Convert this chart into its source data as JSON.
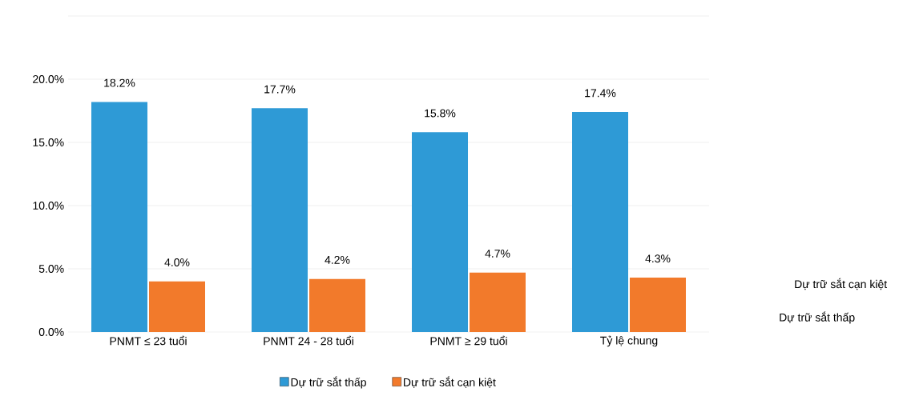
{
  "chart_data": {
    "type": "bar",
    "categories": [
      "PNMT ≤ 23 tuổi",
      "PNMT 24 - 28 tuổi",
      "PNMT ≥ 29 tuổi",
      "Tỷ lệ chung"
    ],
    "series": [
      {
        "name": "Dự trữ sắt thấp",
        "color": "#2e9ad6",
        "values": [
          18.2,
          17.7,
          15.8,
          17.4
        ],
        "value_labels": [
          "18.2%",
          "17.7%",
          "15.8%",
          "17.4%"
        ]
      },
      {
        "name": "Dự trữ sắt cạn kiệt",
        "color": "#f27a2b",
        "values": [
          4.0,
          4.2,
          4.7,
          4.3
        ],
        "value_labels": [
          "4.0%",
          "4.2%",
          "4.7%",
          "4.3%"
        ]
      }
    ],
    "ylim": [
      0,
      25
    ],
    "yticks": [
      {
        "value": 0,
        "label": "0.0%"
      },
      {
        "value": 5,
        "label": "5.0%"
      },
      {
        "value": 10,
        "label": "10.0%"
      },
      {
        "value": 15,
        "label": "15.0%"
      },
      {
        "value": 20,
        "label": "20.0%"
      },
      {
        "value": 25,
        "label": null
      }
    ],
    "grid": "y",
    "legend": "bottom",
    "annotations": [
      "Dự trữ sắt cạn kiệt",
      "Dự trữ sắt thấp"
    ]
  }
}
